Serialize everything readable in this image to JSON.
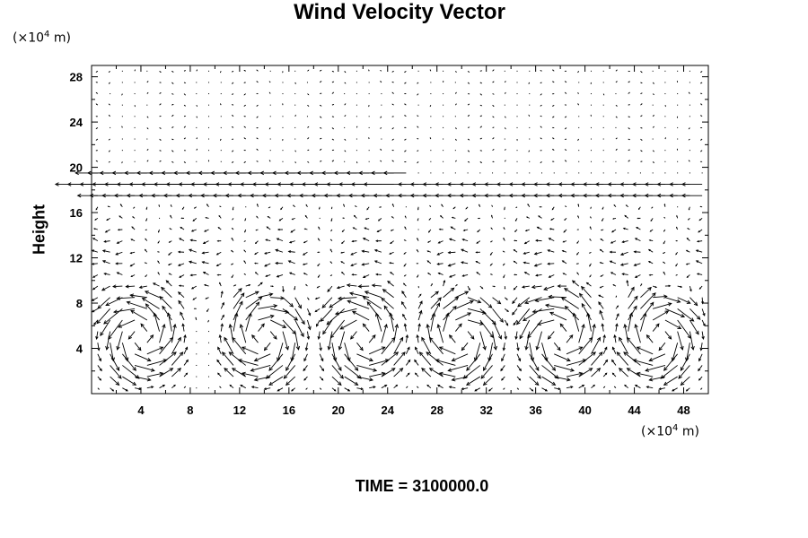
{
  "chart_data": {
    "type": "vector-field",
    "title": "Wind Velocity Vector",
    "ylabel": "Height",
    "xlabel": "",
    "x_unit_prefix": "(×10",
    "x_unit_exp": "4",
    "x_unit_suffix": " m)",
    "y_unit_prefix": "(×10",
    "y_unit_exp": "4",
    "y_unit_suffix": " m)",
    "xlim": [
      0,
      50
    ],
    "ylim": [
      0,
      29
    ],
    "x_ticks": [
      4,
      8,
      12,
      16,
      20,
      24,
      28,
      32,
      36,
      40,
      44,
      48
    ],
    "y_ticks": [
      4,
      8,
      12,
      16,
      20,
      24,
      28
    ],
    "grid": false,
    "annotation": "TIME = 3100000.0",
    "vector_grid": {
      "x_start": 0.5,
      "x_step": 1.0,
      "x_count": 50,
      "y_start": 0.5,
      "y_step": 1.0,
      "y_count": 29
    },
    "jet_levels": [
      {
        "y": 19.0,
        "u": -1.0,
        "x_range": [
          0,
          26
        ]
      },
      {
        "y": 18.0,
        "u": -0.9,
        "x_range": [
          0,
          50
        ]
      }
    ],
    "circulation_cells": [
      {
        "x_center": 4,
        "y_center": 5,
        "x_halfwidth": 4,
        "y_halfheight": 5,
        "sense": 1
      },
      {
        "x_center": 14,
        "y_center": 5,
        "x_halfwidth": 4,
        "y_halfheight": 5,
        "sense": -1
      },
      {
        "x_center": 22,
        "y_center": 5,
        "x_halfwidth": 4,
        "y_halfheight": 5,
        "sense": 1
      },
      {
        "x_center": 30,
        "y_center": 5,
        "x_halfwidth": 4,
        "y_halfheight": 5,
        "sense": -1
      },
      {
        "x_center": 38,
        "y_center": 5,
        "x_halfwidth": 4,
        "y_halfheight": 5,
        "sense": 1
      },
      {
        "x_center": 46,
        "y_center": 5,
        "x_halfwidth": 4,
        "y_halfheight": 5,
        "sense": -1
      }
    ]
  }
}
